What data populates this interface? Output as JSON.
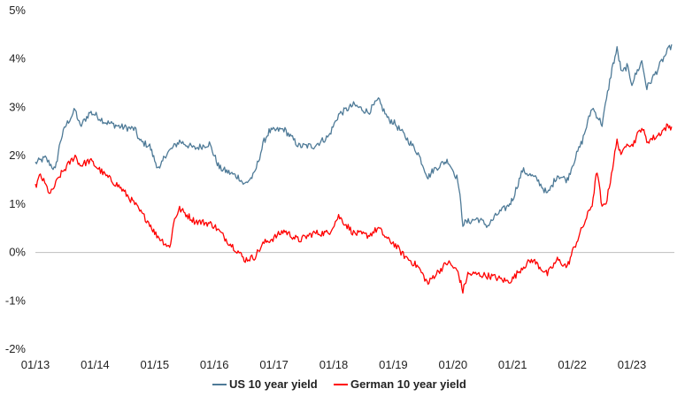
{
  "chart_data": {
    "type": "line",
    "title": "",
    "xlabel": "",
    "ylabel": "",
    "ylim": [
      -2,
      5
    ],
    "yticks": [
      -2,
      -1,
      0,
      1,
      2,
      3,
      4,
      5
    ],
    "ytick_labels": [
      "-2%",
      "-1%",
      "0%",
      "1%",
      "2%",
      "3%",
      "4%",
      "5%"
    ],
    "xticks": [
      "01/13",
      "01/14",
      "01/15",
      "01/16",
      "01/17",
      "01/18",
      "01/19",
      "01/20",
      "01/21",
      "01/22",
      "01/23"
    ],
    "grid": false,
    "legend": "bottom-center",
    "series": [
      {
        "name": "US 10 year yield",
        "color": "#4e7a97",
        "points": [
          [
            "01/13",
            1.85
          ],
          [
            "03/13",
            1.95
          ],
          [
            "05/13",
            1.7
          ],
          [
            "06/13",
            2.3
          ],
          [
            "07/13",
            2.6
          ],
          [
            "09/13",
            2.95
          ],
          [
            "10/13",
            2.6
          ],
          [
            "12/13",
            2.9
          ],
          [
            "01/14",
            2.85
          ],
          [
            "03/14",
            2.7
          ],
          [
            "06/14",
            2.6
          ],
          [
            "09/14",
            2.55
          ],
          [
            "10/14",
            2.3
          ],
          [
            "12/14",
            2.2
          ],
          [
            "01/15",
            1.9
          ],
          [
            "02/15",
            1.7
          ],
          [
            "03/15",
            2.0
          ],
          [
            "06/15",
            2.3
          ],
          [
            "09/15",
            2.15
          ],
          [
            "12/15",
            2.25
          ],
          [
            "01/16",
            2.0
          ],
          [
            "02/16",
            1.75
          ],
          [
            "06/16",
            1.55
          ],
          [
            "07/16",
            1.4
          ],
          [
            "09/16",
            1.6
          ],
          [
            "11/16",
            2.3
          ],
          [
            "12/16",
            2.5
          ],
          [
            "03/17",
            2.55
          ],
          [
            "06/17",
            2.2
          ],
          [
            "09/17",
            2.2
          ],
          [
            "12/17",
            2.4
          ],
          [
            "02/18",
            2.85
          ],
          [
            "05/18",
            3.05
          ],
          [
            "08/18",
            2.9
          ],
          [
            "10/18",
            3.15
          ],
          [
            "12/18",
            2.75
          ],
          [
            "01/19",
            2.7
          ],
          [
            "03/19",
            2.45
          ],
          [
            "06/19",
            2.05
          ],
          [
            "08/19",
            1.55
          ],
          [
            "09/19",
            1.7
          ],
          [
            "11/19",
            1.85
          ],
          [
            "12/19",
            1.9
          ],
          [
            "02/20",
            1.5
          ],
          [
            "03/20",
            0.6
          ],
          [
            "06/20",
            0.7
          ],
          [
            "08/20",
            0.55
          ],
          [
            "10/20",
            0.8
          ],
          [
            "12/20",
            0.95
          ],
          [
            "01/21",
            1.1
          ],
          [
            "03/21",
            1.7
          ],
          [
            "06/21",
            1.5
          ],
          [
            "08/21",
            1.2
          ],
          [
            "10/21",
            1.6
          ],
          [
            "12/21",
            1.5
          ],
          [
            "01/22",
            1.8
          ],
          [
            "03/22",
            2.3
          ],
          [
            "05/22",
            3.0
          ],
          [
            "07/22",
            2.65
          ],
          [
            "09/22",
            3.8
          ],
          [
            "10/22",
            4.2
          ],
          [
            "11/22",
            3.7
          ],
          [
            "12/22",
            3.85
          ],
          [
            "01/23",
            3.5
          ],
          [
            "03/23",
            3.95
          ],
          [
            "04/23",
            3.4
          ],
          [
            "06/23",
            3.75
          ],
          [
            "07/23",
            3.95
          ],
          [
            "09/23",
            4.3
          ]
        ]
      },
      {
        "name": "German 10 year yield",
        "color": "#ff0000",
        "points": [
          [
            "01/13",
            1.35
          ],
          [
            "02/13",
            1.6
          ],
          [
            "04/13",
            1.2
          ],
          [
            "06/13",
            1.6
          ],
          [
            "09/13",
            2.0
          ],
          [
            "10/13",
            1.8
          ],
          [
            "12/13",
            1.9
          ],
          [
            "01/14",
            1.8
          ],
          [
            "03/14",
            1.6
          ],
          [
            "06/14",
            1.35
          ],
          [
            "09/14",
            1.0
          ],
          [
            "10/14",
            0.85
          ],
          [
            "12/14",
            0.6
          ],
          [
            "01/15",
            0.4
          ],
          [
            "03/15",
            0.2
          ],
          [
            "04/15",
            0.1
          ],
          [
            "05/15",
            0.7
          ],
          [
            "06/15",
            0.9
          ],
          [
            "09/15",
            0.65
          ],
          [
            "12/15",
            0.6
          ],
          [
            "01/16",
            0.55
          ],
          [
            "04/16",
            0.2
          ],
          [
            "06/16",
            0.0
          ],
          [
            "07/16",
            -0.15
          ],
          [
            "09/16",
            -0.1
          ],
          [
            "11/16",
            0.2
          ],
          [
            "01/17",
            0.3
          ],
          [
            "03/17",
            0.45
          ],
          [
            "06/17",
            0.25
          ],
          [
            "09/17",
            0.4
          ],
          [
            "12/17",
            0.4
          ],
          [
            "02/18",
            0.75
          ],
          [
            "05/18",
            0.4
          ],
          [
            "08/18",
            0.35
          ],
          [
            "10/18",
            0.5
          ],
          [
            "12/18",
            0.25
          ],
          [
            "01/19",
            0.2
          ],
          [
            "03/19",
            -0.05
          ],
          [
            "06/19",
            -0.3
          ],
          [
            "08/19",
            -0.65
          ],
          [
            "09/19",
            -0.5
          ],
          [
            "11/19",
            -0.3
          ],
          [
            "12/19",
            -0.2
          ],
          [
            "02/20",
            -0.4
          ],
          [
            "03/20",
            -0.8
          ],
          [
            "04/20",
            -0.45
          ],
          [
            "06/20",
            -0.45
          ],
          [
            "09/20",
            -0.5
          ],
          [
            "12/20",
            -0.6
          ],
          [
            "01/21",
            -0.55
          ],
          [
            "03/21",
            -0.3
          ],
          [
            "05/21",
            -0.15
          ],
          [
            "08/21",
            -0.45
          ],
          [
            "10/21",
            -0.15
          ],
          [
            "12/21",
            -0.3
          ],
          [
            "01/22",
            0.0
          ],
          [
            "03/22",
            0.5
          ],
          [
            "05/22",
            1.0
          ],
          [
            "06/22",
            1.7
          ],
          [
            "07/22",
            0.9
          ],
          [
            "08/22",
            1.1
          ],
          [
            "10/22",
            2.3
          ],
          [
            "11/22",
            2.0
          ],
          [
            "12/22",
            2.3
          ],
          [
            "01/23",
            2.2
          ],
          [
            "03/23",
            2.6
          ],
          [
            "04/23",
            2.3
          ],
          [
            "06/23",
            2.4
          ],
          [
            "08/23",
            2.6
          ],
          [
            "09/23",
            2.6
          ]
        ]
      }
    ]
  }
}
